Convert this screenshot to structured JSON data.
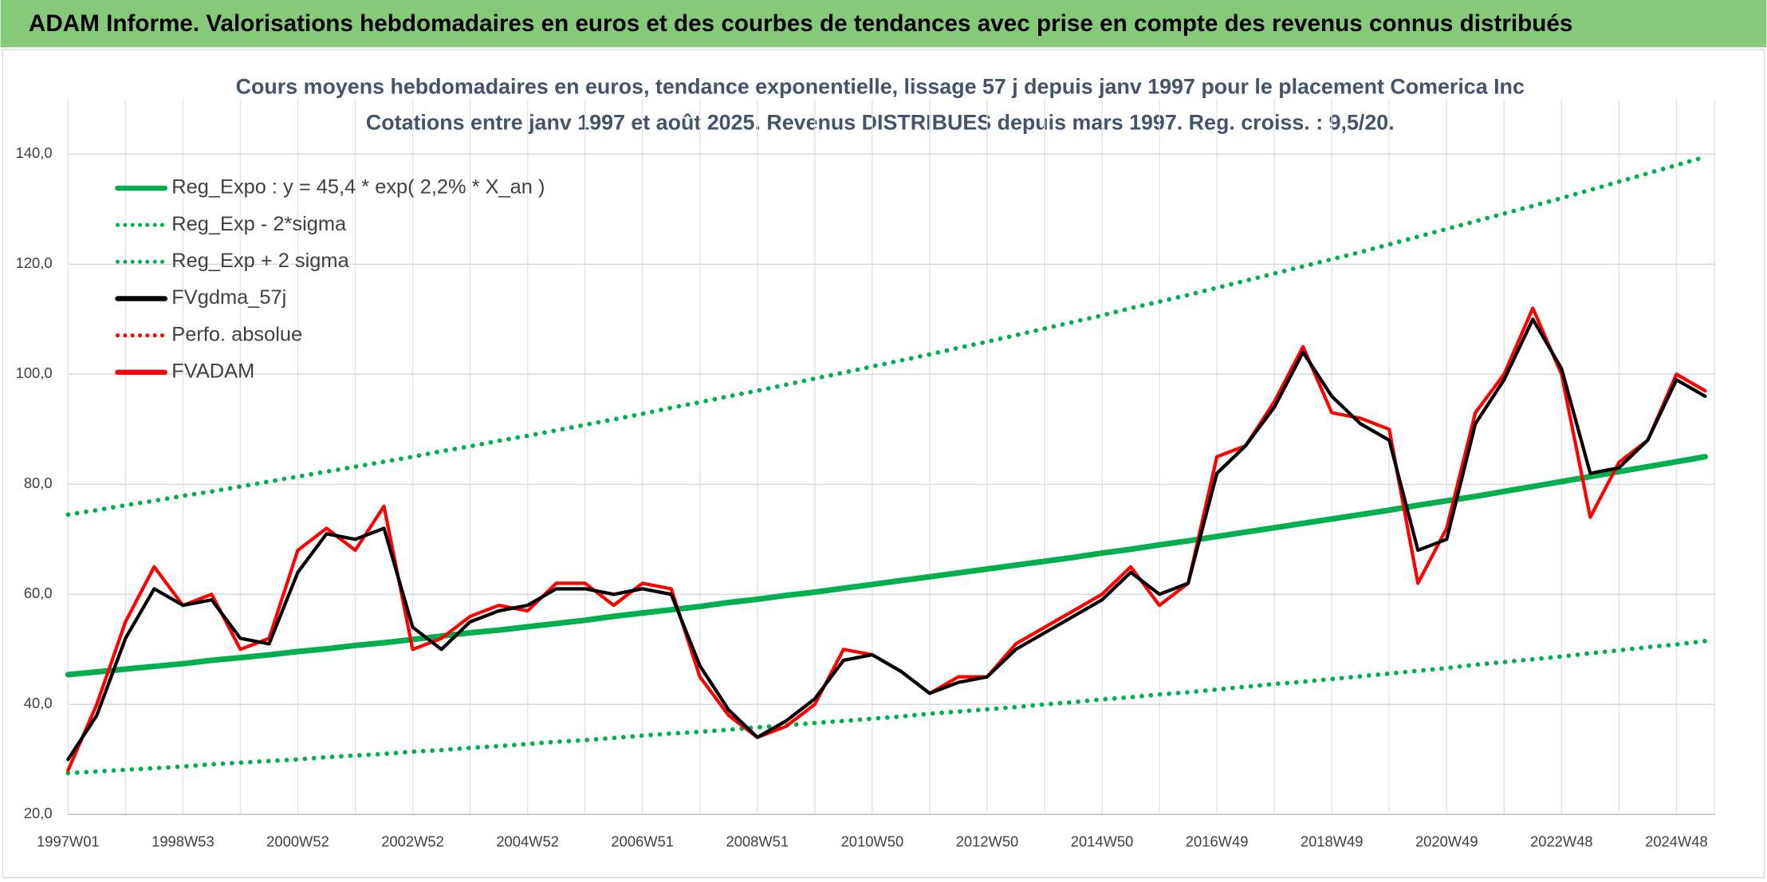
{
  "title_bar": "ADAM Informe. Valorisations hebdomadaires en euros et des courbes de tendances avec prise en compte des revenus connus distribués",
  "chart_data": {
    "type": "line",
    "title": "Cours moyens hebdomadaires en euros, tendance exponentielle, lissage 57 j depuis janv 1997 pour le placement Comerica Inc",
    "subtitle": "Cotations entre janv 1997 et août 2025. Revenus DISTRIBUES depuis mars 1997. Reg. croiss. : 9,5/20.",
    "categories": [
      "1997W01",
      null,
      null,
      null,
      "1998W53",
      null,
      null,
      null,
      "2000W52",
      null,
      null,
      null,
      "2002W52",
      null,
      null,
      null,
      "2004W52",
      null,
      null,
      null,
      "2006W51",
      null,
      null,
      null,
      "2008W51",
      null,
      null,
      null,
      "2010W50",
      null,
      null,
      null,
      "2012W50",
      null,
      null,
      null,
      "2014W50",
      null,
      null,
      null,
      "2016W49",
      null,
      null,
      null,
      "2018W49",
      null,
      null,
      null,
      "2020W49",
      null,
      null,
      null,
      "2022W48",
      null,
      null,
      null,
      "2024W48",
      null
    ],
    "ylim": [
      20,
      150
    ],
    "yticks": [
      {
        "value": 20,
        "label": "20,0"
      },
      {
        "value": 40,
        "label": "40,0"
      },
      {
        "value": 60,
        "label": "60,0"
      },
      {
        "value": 80,
        "label": "80,0"
      },
      {
        "value": 100,
        "label": "100,0"
      },
      {
        "value": 120,
        "label": "120,0"
      },
      {
        "value": 140,
        "label": "140,0"
      }
    ],
    "grid": true,
    "legend": "top-left",
    "series": [
      {
        "name": "Reg_Expo : y = 45,4 * exp( 2,2% *  X_an )",
        "color": "#00b050",
        "style": "solid",
        "values": [
          45.4,
          45.9,
          46.4,
          46.9,
          47.4,
          48.0,
          48.5,
          49.0,
          49.6,
          50.1,
          50.7,
          51.2,
          51.8,
          52.4,
          53.0,
          53.5,
          54.1,
          54.7,
          55.3,
          56.0,
          56.6,
          57.2,
          57.8,
          58.5,
          59.1,
          59.8,
          60.4,
          61.1,
          61.8,
          62.5,
          63.2,
          63.9,
          64.6,
          65.3,
          66.0,
          66.7,
          67.5,
          68.2,
          69.0,
          69.7,
          70.5,
          71.3,
          72.1,
          72.9,
          73.7,
          74.5,
          75.3,
          76.2,
          77.0,
          77.8,
          78.7,
          79.6,
          80.5,
          81.4,
          82.3,
          83.2,
          84.1,
          85.0
        ]
      },
      {
        "name": "Reg_Exp - 2*sigma",
        "color": "#00b050",
        "style": "dotted",
        "values": [
          27.5,
          27.8,
          28.1,
          28.4,
          28.7,
          29.1,
          29.4,
          29.7,
          30.0,
          30.4,
          30.7,
          31.0,
          31.4,
          31.7,
          32.1,
          32.4,
          32.8,
          33.2,
          33.5,
          33.9,
          34.3,
          34.7,
          35.0,
          35.4,
          35.8,
          36.2,
          36.6,
          37.0,
          37.4,
          37.8,
          38.3,
          38.7,
          39.1,
          39.5,
          40.0,
          40.4,
          40.9,
          41.3,
          41.8,
          42.2,
          42.7,
          43.2,
          43.7,
          44.1,
          44.6,
          45.1,
          45.6,
          46.1,
          46.6,
          47.2,
          47.7,
          48.2,
          48.7,
          49.3,
          49.8,
          50.4,
          50.9,
          51.5
        ]
      },
      {
        "name": "Reg_Exp + 2 sigma",
        "color": "#00b050",
        "style": "dotted",
        "values": [
          74.5,
          75.3,
          76.2,
          77.0,
          77.9,
          78.7,
          79.6,
          80.5,
          81.4,
          82.3,
          83.2,
          84.1,
          85.0,
          86.0,
          86.9,
          87.9,
          88.8,
          89.8,
          90.8,
          91.8,
          92.8,
          93.9,
          94.9,
          96.0,
          97.0,
          98.1,
          99.2,
          100.3,
          101.4,
          102.5,
          103.6,
          104.8,
          105.9,
          107.1,
          108.3,
          109.5,
          110.7,
          112.0,
          113.2,
          114.4,
          115.7,
          117.0,
          118.3,
          119.6,
          120.9,
          122.2,
          123.6,
          125.0,
          126.4,
          127.8,
          129.2,
          130.6,
          132.0,
          133.5,
          135.0,
          136.5,
          138.0,
          139.5
        ]
      },
      {
        "name": "FVgdma_57j",
        "color": "#000000",
        "style": "solid",
        "values": [
          30,
          38,
          52,
          61,
          58,
          59,
          52,
          51,
          64,
          71,
          70,
          72,
          54,
          50,
          55,
          57,
          58,
          61,
          61,
          60,
          61,
          60,
          47,
          39,
          34,
          37,
          41,
          48,
          49,
          46,
          42,
          44,
          45,
          50,
          53,
          56,
          59,
          64,
          60,
          62,
          82,
          87,
          94,
          104,
          96,
          91,
          88,
          68,
          70,
          91,
          99,
          110,
          101,
          82,
          83,
          88,
          99,
          96
        ]
      },
      {
        "name": "Perfo. absolue",
        "color": "#ff0000",
        "style": "dotted",
        "values": [
          null,
          null,
          null,
          null,
          null,
          null,
          null,
          null,
          null,
          null,
          null,
          null,
          null,
          null,
          null,
          null,
          null,
          null,
          null,
          null,
          null,
          null,
          null,
          null,
          null,
          null,
          null,
          null,
          null,
          null,
          null,
          null,
          null,
          null,
          null,
          null,
          null,
          null,
          null,
          null,
          null,
          null,
          null,
          null,
          null,
          null,
          null,
          null,
          null,
          null,
          null,
          null,
          null,
          null,
          null,
          null,
          null,
          null
        ]
      },
      {
        "name": "FVADAM",
        "color": "#ff0000",
        "style": "solid",
        "values": [
          28,
          40,
          55,
          65,
          58,
          60,
          50,
          52,
          68,
          72,
          68,
          76,
          50,
          52,
          56,
          58,
          57,
          62,
          62,
          58,
          62,
          61,
          45,
          38,
          34,
          36,
          40,
          50,
          49,
          46,
          42,
          45,
          45,
          51,
          54,
          57,
          60,
          65,
          58,
          62,
          85,
          87,
          95,
          105,
          93,
          92,
          90,
          62,
          72,
          93,
          100,
          112,
          100,
          74,
          84,
          88,
          100,
          97
        ]
      }
    ]
  }
}
